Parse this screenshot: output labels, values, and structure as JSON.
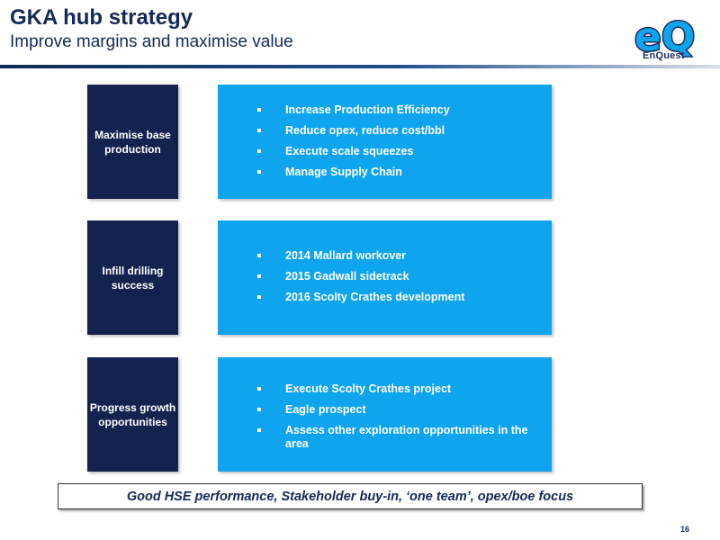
{
  "header": {
    "title": "GKA hub strategy",
    "subtitle": "Improve margins and maximise value",
    "logo_text": "EnQuest",
    "logo_letters": "eQ"
  },
  "rows": [
    {
      "label": "Maximise base production",
      "bullets": [
        "Increase Production Efficiency",
        "Reduce opex, reduce cost/bbl",
        "Execute scale squeezes",
        "Manage Supply Chain"
      ]
    },
    {
      "label": "Infill drilling success",
      "bullets": [
        "2014 Mallard workover",
        "2015 Gadwall sidetrack",
        "2016 Scolty Crathes development"
      ]
    },
    {
      "label": "Progress growth opportunities",
      "bullets": [
        "Execute Scolty Crathes project",
        "Eagle prospect",
        "Assess other exploration opportunities in the area"
      ]
    }
  ],
  "footer": "Good HSE performance, Stakeholder buy-in, ‘one team’, opex/boe focus",
  "page_number": "16",
  "colors": {
    "navy": "#13224f",
    "sky_blue": "#0fa4ee",
    "title_blue": "#132a56"
  }
}
